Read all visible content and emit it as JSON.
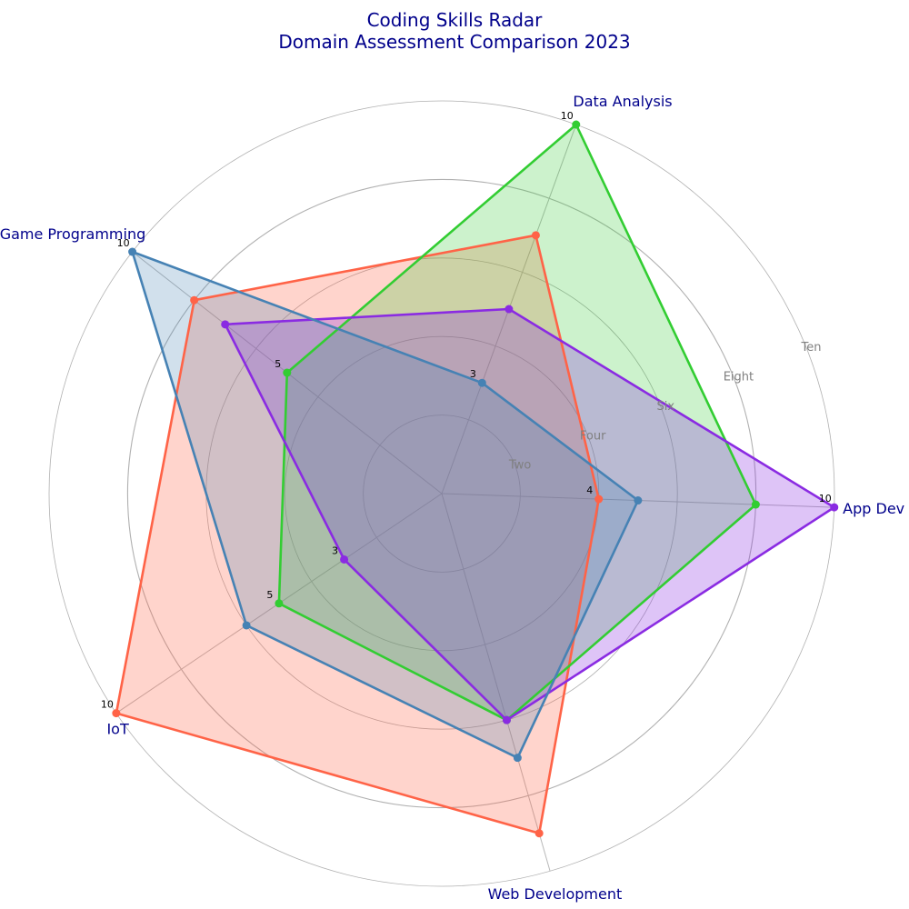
{
  "chart_data": {
    "type": "radar",
    "title": "Coding Skills Radar",
    "subtitle": "Domain Assessment Comparison 2023",
    "categories": [
      "App Dev",
      "Data Analysis",
      "Game Programming",
      "IoT",
      "Web Development"
    ],
    "r_range": [
      0,
      10
    ],
    "ring_labels": [
      "Two",
      "Four",
      "Six",
      "Eight",
      "Ten"
    ],
    "ring_values": [
      2,
      4,
      6,
      8,
      10
    ],
    "grid": true,
    "series": [
      {
        "color": "#ff6347",
        "values": [
          4,
          7,
          8,
          10,
          9
        ],
        "fill_opacity": 0.28
      },
      {
        "color": "#32cd32",
        "values": [
          8,
          10,
          5,
          5,
          6
        ],
        "fill_opacity": 0.25
      },
      {
        "color": "#8a2be2",
        "values": [
          10,
          5,
          7,
          3,
          6
        ],
        "fill_opacity": 0.28
      },
      {
        "color": "#4682b4",
        "values": [
          5,
          3,
          10,
          6,
          7
        ],
        "fill_opacity": 0.25
      }
    ],
    "annotations": [
      {
        "category": "App Dev",
        "value": 4,
        "text": "4"
      },
      {
        "category": "App Dev",
        "value": 10,
        "text": "10"
      },
      {
        "category": "Data Analysis",
        "value": 3,
        "text": "3"
      },
      {
        "category": "Data Analysis",
        "value": 10,
        "text": "10"
      },
      {
        "category": "Game Programming",
        "value": 5,
        "text": "5"
      },
      {
        "category": "Game Programming",
        "value": 10,
        "text": "10"
      },
      {
        "category": "IoT",
        "value": 3,
        "text": "3"
      },
      {
        "category": "IoT",
        "value": 5,
        "text": "5"
      },
      {
        "category": "IoT",
        "value": 10,
        "text": "10"
      }
    ]
  }
}
